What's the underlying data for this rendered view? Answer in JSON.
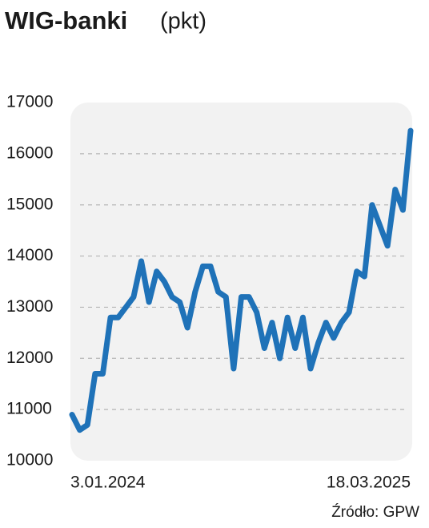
{
  "chart_data": {
    "type": "line",
    "title": "WIG-banki",
    "unit": "(pkt)",
    "source": "Źródło: GPW",
    "categories": [
      "3.01.2024",
      null,
      null,
      null,
      null,
      null,
      null,
      null,
      null,
      null,
      null,
      null,
      null,
      null,
      null,
      null,
      null,
      null,
      null,
      null,
      null,
      null,
      null,
      null,
      null,
      null,
      null,
      null,
      null,
      null,
      null,
      null,
      null,
      null,
      null,
      null,
      null,
      null,
      null,
      null,
      null,
      null,
      null,
      null,
      "18.03.2025"
    ],
    "series": [
      {
        "name": "WIG-banki",
        "color": "#1f72b8",
        "values": [
          10900,
          10600,
          10700,
          11700,
          11700,
          12800,
          12800,
          13000,
          13200,
          13900,
          13100,
          13700,
          13500,
          13200,
          13100,
          12600,
          13300,
          13800,
          13800,
          13300,
          13200,
          11800,
          13200,
          13200,
          12900,
          12200,
          12700,
          12000,
          12800,
          12200,
          12800,
          11800,
          12300,
          12700,
          12400,
          12700,
          12900,
          13700,
          13600,
          15000,
          14600,
          14200,
          15300,
          14900,
          16450
        ]
      }
    ],
    "ylim": [
      10000,
      17000
    ],
    "yticks": [
      10000,
      11000,
      12000,
      13000,
      14000,
      15000,
      16000,
      17000
    ],
    "grid": true
  }
}
